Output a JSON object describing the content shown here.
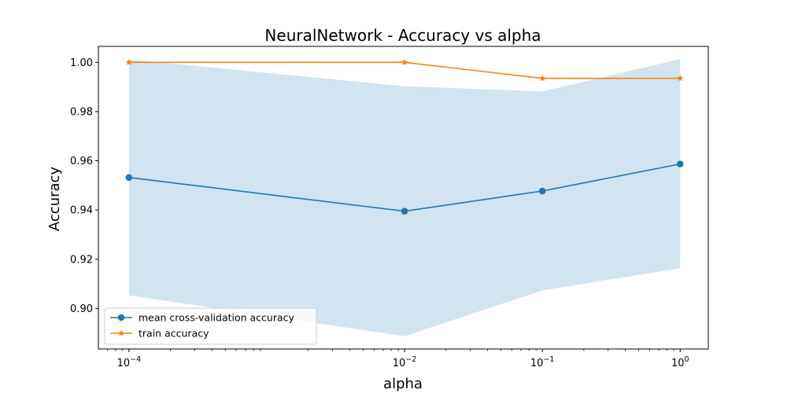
{
  "chart_data": {
    "type": "line",
    "title": "NeuralNetwork - Accuracy vs alpha",
    "xlabel": "alpha",
    "ylabel": "Accuracy",
    "xscale": "log",
    "xlim": [
      6e-05,
      1.6
    ],
    "ylim": [
      0.8835,
      1.0065
    ],
    "x": [
      0.0001,
      0.01,
      0.1,
      1
    ],
    "x_tick_labels": [
      {
        "base": "10",
        "exp": "−4"
      },
      {
        "base": "10",
        "exp": "−2"
      },
      {
        "base": "10",
        "exp": "−1"
      },
      {
        "base": "10",
        "exp": "0"
      }
    ],
    "y_ticks": [
      0.9,
      0.92,
      0.94,
      0.96,
      0.98,
      1.0
    ],
    "y_tick_labels": [
      "0.90",
      "0.92",
      "0.94",
      "0.96",
      "0.98",
      "1.00"
    ],
    "series": [
      {
        "name": "mean cross-validation accuracy",
        "values": [
          0.9532,
          0.9395,
          0.9477,
          0.9587
        ],
        "color": "#1f77b4",
        "marker": "circle"
      },
      {
        "name": "train accuracy",
        "values": [
          1.0,
          1.0,
          0.9935,
          0.9935
        ],
        "color": "#ff7f0e",
        "marker": "star"
      }
    ],
    "band": {
      "upper": [
        1.0012,
        0.9903,
        0.9882,
        1.0013
      ],
      "lower": [
        0.9053,
        0.8887,
        0.9073,
        0.9163
      ],
      "color": "#1f77b4",
      "opacity": 0.2
    },
    "grid": false,
    "legend_position": "lower-left"
  }
}
